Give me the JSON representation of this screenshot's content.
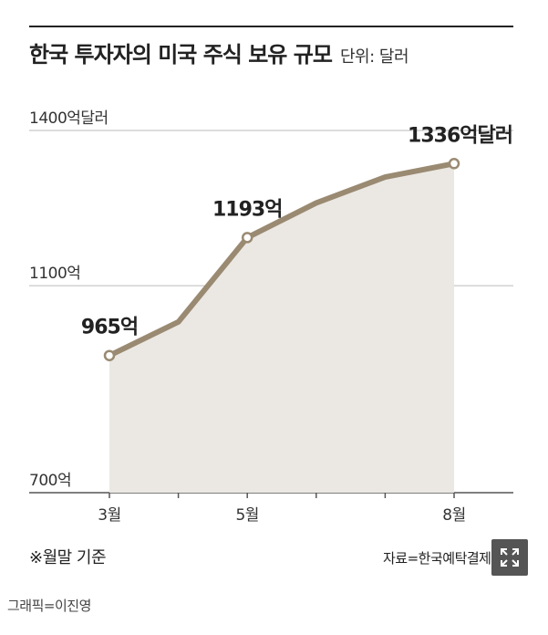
{
  "header": {
    "title": "한국 투자자의 미국 주식 보유 규모",
    "unit": "단위: 달러"
  },
  "chart_data": {
    "type": "area",
    "title": "한국 투자자의 미국 주식 보유 규모",
    "x": [
      3,
      4,
      5,
      6,
      7,
      8
    ],
    "x_tick_values": [
      3,
      5,
      8
    ],
    "x_tick_labels": [
      "3월",
      "5월",
      "8월"
    ],
    "values": [
      965,
      1030,
      1193,
      1260,
      1310,
      1336
    ],
    "y_ticks": [
      {
        "value": 1400,
        "label": "1400억달러"
      },
      {
        "value": 1100,
        "label": "1100억"
      },
      {
        "value": 700,
        "label": "700억"
      }
    ],
    "ylim": [
      700,
      1400
    ],
    "xlim": [
      3,
      8
    ],
    "data_labels": [
      {
        "index": 0,
        "label": "965억"
      },
      {
        "index": 2,
        "label": "1193억"
      },
      {
        "index": 5,
        "label": "1336억달러"
      }
    ],
    "grid": true,
    "legend": "none",
    "colors": {
      "line": "#9a8a72",
      "fill": "#ebe8e3",
      "marker_fill": "#ffffff",
      "grid": "#bbbbbb"
    }
  },
  "footnote": "※월말 기준",
  "source": "자료=한국예탁결제원",
  "credit": "그래픽=이진영",
  "controls": {
    "expand_icon": "expand-icon"
  }
}
